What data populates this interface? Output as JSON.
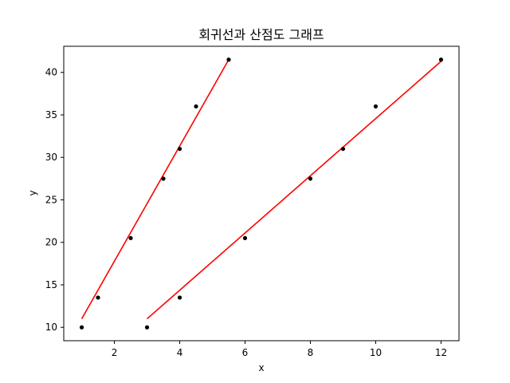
{
  "chart_data": {
    "type": "scatter",
    "title": "회귀선과 산점도 그래프",
    "xlabel": "x",
    "ylabel": "y",
    "xlim": [
      0.45,
      12.55
    ],
    "ylim": [
      8.425,
      43.075
    ],
    "xticks": [
      2,
      4,
      6,
      8,
      10,
      12
    ],
    "yticks": [
      10,
      15,
      20,
      25,
      30,
      35,
      40
    ],
    "grid": false,
    "series": [
      {
        "kind": "scatter",
        "color": "#000000",
        "x": [
          1,
          1.5,
          2.5,
          3.5,
          4,
          4.5,
          5.5
        ],
        "y": [
          10,
          13.5,
          20.5,
          27.5,
          31,
          36,
          41.5
        ]
      },
      {
        "kind": "line",
        "color": "#ff0000",
        "x": [
          1,
          5.5
        ],
        "y": [
          11,
          41.5
        ]
      },
      {
        "kind": "scatter",
        "color": "#000000",
        "x": [
          3,
          4,
          6,
          8,
          9,
          10,
          12
        ],
        "y": [
          10,
          13.5,
          20.5,
          27.5,
          31,
          36,
          41.5
        ]
      },
      {
        "kind": "line",
        "color": "#ff0000",
        "x": [
          3,
          12
        ],
        "y": [
          11,
          41.3
        ]
      }
    ]
  }
}
